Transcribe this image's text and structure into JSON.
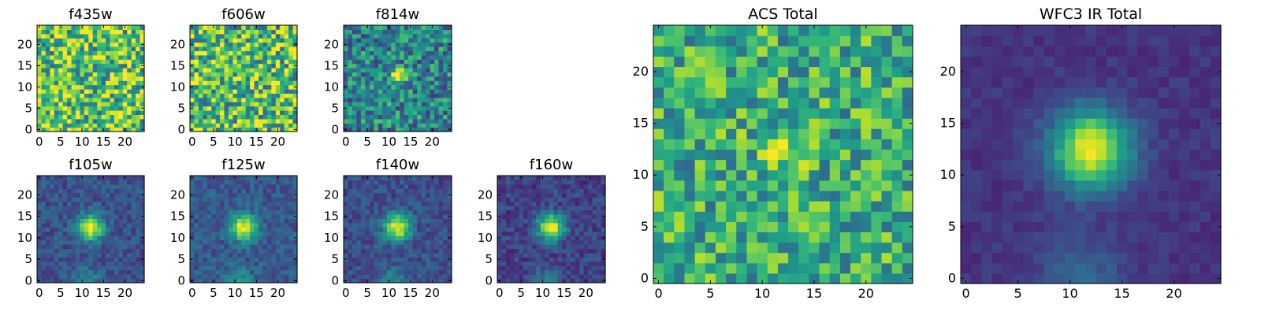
{
  "chart_data": [
    {
      "type": "heatmap",
      "title": "f435w",
      "xticks": [
        "0",
        "5",
        "10",
        "15",
        "20"
      ],
      "yticks": [
        "0",
        "5",
        "10",
        "15",
        "20"
      ],
      "xlim": [
        -0.5,
        24.5
      ],
      "ylim": [
        -0.5,
        24.5
      ],
      "pattern": "noise-high",
      "brightness": 0.72,
      "source_peak": 0.0
    },
    {
      "type": "heatmap",
      "title": "f606w",
      "xticks": [
        "0",
        "5",
        "10",
        "15",
        "20"
      ],
      "yticks": [
        "0",
        "5",
        "10",
        "15",
        "20"
      ],
      "xlim": [
        -0.5,
        24.5
      ],
      "ylim": [
        -0.5,
        24.5
      ],
      "pattern": "noise-high",
      "brightness": 0.7,
      "source_peak": 0.05
    },
    {
      "type": "heatmap",
      "title": "f814w",
      "xticks": [
        "0",
        "5",
        "10",
        "15",
        "20"
      ],
      "yticks": [
        "0",
        "5",
        "10",
        "15",
        "20"
      ],
      "xlim": [
        -0.5,
        24.5
      ],
      "ylim": [
        -0.5,
        24.5
      ],
      "pattern": "noise-source",
      "brightness": 0.45,
      "source_peak": 0.55
    },
    {
      "type": "heatmap",
      "title": "f105w",
      "xticks": [
        "0",
        "5",
        "10",
        "15",
        "20"
      ],
      "yticks": [
        "0",
        "5",
        "10",
        "15",
        "20"
      ],
      "xlim": [
        -0.5,
        24.5
      ],
      "ylim": [
        -0.5,
        24.5
      ],
      "pattern": "source",
      "brightness": 0.25,
      "source_peak": 0.75
    },
    {
      "type": "heatmap",
      "title": "f125w",
      "xticks": [
        "0",
        "5",
        "10",
        "15",
        "20"
      ],
      "yticks": [
        "0",
        "5",
        "10",
        "15",
        "20"
      ],
      "xlim": [
        -0.5,
        24.5
      ],
      "ylim": [
        -0.5,
        24.5
      ],
      "pattern": "source",
      "brightness": 0.28,
      "source_peak": 0.72
    },
    {
      "type": "heatmap",
      "title": "f140w",
      "xticks": [
        "0",
        "5",
        "10",
        "15",
        "20"
      ],
      "yticks": [
        "0",
        "5",
        "10",
        "15",
        "20"
      ],
      "xlim": [
        -0.5,
        24.5
      ],
      "ylim": [
        -0.5,
        24.5
      ],
      "pattern": "source",
      "brightness": 0.24,
      "source_peak": 0.76
    },
    {
      "type": "heatmap",
      "title": "f160w",
      "xticks": [
        "0",
        "5",
        "10",
        "15",
        "20"
      ],
      "yticks": [
        "0",
        "5",
        "10",
        "15",
        "20"
      ],
      "xlim": [
        -0.5,
        24.5
      ],
      "ylim": [
        -0.5,
        24.5
      ],
      "pattern": "source",
      "brightness": 0.2,
      "source_peak": 0.8
    },
    {
      "type": "heatmap",
      "title": "ACS Total",
      "xticks": [
        "0",
        "5",
        "10",
        "15",
        "20"
      ],
      "yticks": [
        "0",
        "5",
        "10",
        "15",
        "20"
      ],
      "xlim": [
        -0.5,
        24.5
      ],
      "ylim": [
        -0.5,
        24.5
      ],
      "pattern": "noise-source",
      "brightness": 0.62,
      "source_peak": 0.38
    },
    {
      "type": "heatmap",
      "title": "WFC3 IR Total",
      "xticks": [
        "0",
        "5",
        "10",
        "15",
        "20"
      ],
      "yticks": [
        "0",
        "5",
        "10",
        "15",
        "20"
      ],
      "xlim": [
        -0.5,
        24.5
      ],
      "ylim": [
        -0.5,
        24.5
      ],
      "pattern": "smooth-source",
      "brightness": 0.15,
      "source_peak": 0.85
    }
  ],
  "colormap": "viridis"
}
